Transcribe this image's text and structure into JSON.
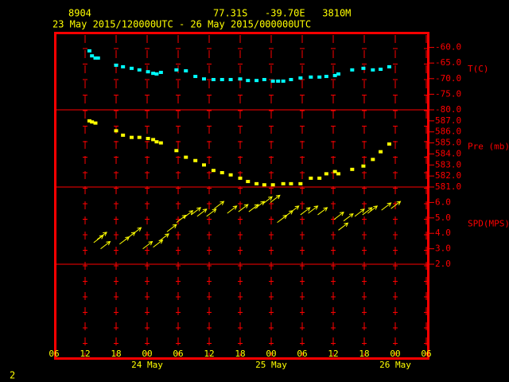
{
  "header": {
    "station": "8904",
    "location": "77.31S   -39.70E   3810M",
    "period": "23 May 2015/120000UTC - 26 May 2015/000000UTC",
    "page": "2"
  },
  "chart_data": [
    {
      "type": "scatter",
      "axis_label": "T(C)",
      "color": "#00ffff",
      "xlim": [
        "2015-05-23T06:00",
        "2015-05-26T06:00"
      ],
      "ylim": [
        -80,
        -55
      ],
      "yticks": [
        {
          "value": -60,
          "label": "-60.0"
        },
        {
          "value": -65,
          "label": "-65.0"
        },
        {
          "value": -70,
          "label": "-70.0"
        },
        {
          "value": -75,
          "label": "-75.0"
        },
        {
          "value": -80,
          "label": "-80.0"
        }
      ],
      "x": [
        "2015-05-23T12:50",
        "2015-05-23T13:20",
        "2015-05-23T14:00",
        "2015-05-23T14:30",
        "2015-05-23T18:00",
        "2015-05-23T19:20",
        "2015-05-23T21:00",
        "2015-05-23T22:30",
        "2015-05-24T00:10",
        "2015-05-24T01:10",
        "2015-05-24T01:50",
        "2015-05-24T02:40",
        "2015-05-24T05:40",
        "2015-05-24T07:30",
        "2015-05-24T09:20",
        "2015-05-24T11:00",
        "2015-05-24T12:50",
        "2015-05-24T14:30",
        "2015-05-24T16:10",
        "2015-05-24T18:00",
        "2015-05-24T19:30",
        "2015-05-24T21:10",
        "2015-05-24T22:40",
        "2015-05-25T00:20",
        "2015-05-25T01:20",
        "2015-05-25T02:20",
        "2015-05-25T03:50",
        "2015-05-25T05:40",
        "2015-05-25T07:40",
        "2015-05-25T09:20",
        "2015-05-25T10:40",
        "2015-05-25T12:20",
        "2015-05-25T13:00",
        "2015-05-25T15:40",
        "2015-05-25T17:50",
        "2015-05-25T19:40",
        "2015-05-25T21:10",
        "2015-05-25T22:50"
      ],
      "values": [
        -61.1,
        -62.7,
        -63.4,
        -63.4,
        -65.7,
        -66.2,
        -66.7,
        -67.2,
        -67.8,
        -68.3,
        -68.5,
        -68.0,
        -67.2,
        -67.5,
        -69.3,
        -70.1,
        -70.3,
        -70.3,
        -70.3,
        -70.1,
        -70.6,
        -70.6,
        -70.3,
        -70.8,
        -70.8,
        -70.8,
        -70.3,
        -69.8,
        -69.5,
        -69.5,
        -69.3,
        -69.0,
        -68.5,
        -67.2,
        -66.7,
        -67.2,
        -67.0,
        -66.2
      ]
    },
    {
      "type": "scatter",
      "axis_label": "Pre (mb)",
      "color": "#ffff00",
      "xlim": [
        "2015-05-23T06:00",
        "2015-05-26T06:00"
      ],
      "ylim": [
        581,
        588
      ],
      "yticks": [
        {
          "value": 587,
          "label": "587.0"
        },
        {
          "value": 586,
          "label": "586.0"
        },
        {
          "value": 585,
          "label": "585.0"
        },
        {
          "value": 584,
          "label": "584.0"
        },
        {
          "value": 583,
          "label": "583.0"
        },
        {
          "value": 582,
          "label": "582.0"
        },
        {
          "value": 581,
          "label": "581.0"
        }
      ],
      "x": [
        "2015-05-23T12:50",
        "2015-05-23T13:20",
        "2015-05-23T14:00",
        "2015-05-23T18:00",
        "2015-05-23T19:20",
        "2015-05-23T21:00",
        "2015-05-23T22:30",
        "2015-05-24T00:10",
        "2015-05-24T01:10",
        "2015-05-24T01:50",
        "2015-05-24T02:40",
        "2015-05-24T05:40",
        "2015-05-24T07:30",
        "2015-05-24T09:20",
        "2015-05-24T11:00",
        "2015-05-24T12:50",
        "2015-05-24T14:30",
        "2015-05-24T16:10",
        "2015-05-24T18:00",
        "2015-05-24T19:30",
        "2015-05-24T21:10",
        "2015-05-24T22:40",
        "2015-05-25T00:20",
        "2015-05-25T02:20",
        "2015-05-25T03:50",
        "2015-05-25T05:40",
        "2015-05-25T07:40",
        "2015-05-25T09:20",
        "2015-05-25T10:40",
        "2015-05-25T12:20",
        "2015-05-25T13:00",
        "2015-05-25T15:40",
        "2015-05-25T17:50",
        "2015-05-25T19:40",
        "2015-05-25T21:10",
        "2015-05-25T22:50"
      ],
      "values": [
        587.0,
        586.9,
        586.8,
        586.1,
        585.7,
        585.5,
        585.5,
        585.4,
        585.3,
        585.1,
        585.0,
        584.3,
        583.7,
        583.4,
        583.0,
        582.5,
        582.3,
        582.1,
        581.8,
        581.5,
        581.3,
        581.2,
        581.2,
        581.3,
        581.3,
        581.3,
        581.8,
        581.8,
        582.2,
        582.4,
        582.2,
        582.6,
        582.9,
        583.5,
        584.2,
        584.9
      ]
    },
    {
      "type": "arrows",
      "axis_label": "SPD(MPS)",
      "color": "#ffff00",
      "xlim": [
        "2015-05-23T06:00",
        "2015-05-26T06:00"
      ],
      "xticks": [
        {
          "value": "2015-05-23T06:00",
          "label": "06"
        },
        {
          "value": "2015-05-23T12:00",
          "label": "12"
        },
        {
          "value": "2015-05-23T18:00",
          "label": "18"
        },
        {
          "value": "2015-05-24T00:00",
          "label": "00"
        },
        {
          "value": "2015-05-24T06:00",
          "label": "06"
        },
        {
          "value": "2015-05-24T12:00",
          "label": "12"
        },
        {
          "value": "2015-05-24T18:00",
          "label": "18"
        },
        {
          "value": "2015-05-25T00:00",
          "label": "00"
        },
        {
          "value": "2015-05-25T06:00",
          "label": "06"
        },
        {
          "value": "2015-05-25T12:00",
          "label": "12"
        },
        {
          "value": "2015-05-25T18:00",
          "label": "18"
        },
        {
          "value": "2015-05-26T00:00",
          "label": "00"
        },
        {
          "value": "2015-05-26T06:00",
          "label": "06"
        }
      ],
      "day_labels": [
        {
          "value": "2015-05-24T00:00",
          "label": "24 May"
        },
        {
          "value": "2015-05-25T00:00",
          "label": "25 May"
        },
        {
          "value": "2015-05-26T00:00",
          "label": "26 May"
        }
      ],
      "ylim": [
        2,
        7
      ],
      "yticks": [
        {
          "value": 6,
          "label": "6.0"
        },
        {
          "value": 5,
          "label": "5.0"
        },
        {
          "value": 4,
          "label": "4.0"
        },
        {
          "value": 3,
          "label": "3.0"
        },
        {
          "value": 2,
          "label": "2.0"
        }
      ],
      "x": [
        "2015-05-23T13:40",
        "2015-05-23T15:00",
        "2015-05-23T14:20",
        "2015-05-23T18:40",
        "2015-05-23T19:50",
        "2015-05-23T21:00",
        "2015-05-23T23:10",
        "2015-05-24T01:10",
        "2015-05-24T02:20",
        "2015-05-24T03:50",
        "2015-05-24T05:40",
        "2015-05-24T07:00",
        "2015-05-24T08:30",
        "2015-05-24T09:40",
        "2015-05-24T11:30",
        "2015-05-24T13:00",
        "2015-05-24T15:30",
        "2015-05-24T17:40",
        "2015-05-24T19:40",
        "2015-05-24T20:50",
        "2015-05-24T22:20",
        "2015-05-24T23:50",
        "2015-05-25T01:10",
        "2015-05-25T02:20",
        "2015-05-25T03:30",
        "2015-05-25T05:40",
        "2015-05-25T07:10",
        "2015-05-25T09:00",
        "2015-05-25T12:10",
        "2015-05-25T13:00",
        "2015-05-25T14:00",
        "2015-05-25T16:10",
        "2015-05-25T17:40",
        "2015-05-25T18:40",
        "2015-05-25T21:20",
        "2015-05-25T23:10"
      ],
      "values": [
        3.4,
        3.0,
        3.6,
        3.3,
        3.6,
        3.9,
        3.0,
        3.1,
        3.5,
        4.1,
        4.7,
        5.0,
        5.2,
        5.1,
        5.1,
        5.6,
        5.3,
        5.4,
        5.4,
        5.6,
        5.9,
        6.0,
        4.7,
        5.0,
        5.3,
        5.2,
        5.3,
        5.2,
        4.9,
        4.2,
        4.8,
        5.1,
        5.2,
        5.3,
        5.5,
        5.6
      ]
    }
  ]
}
